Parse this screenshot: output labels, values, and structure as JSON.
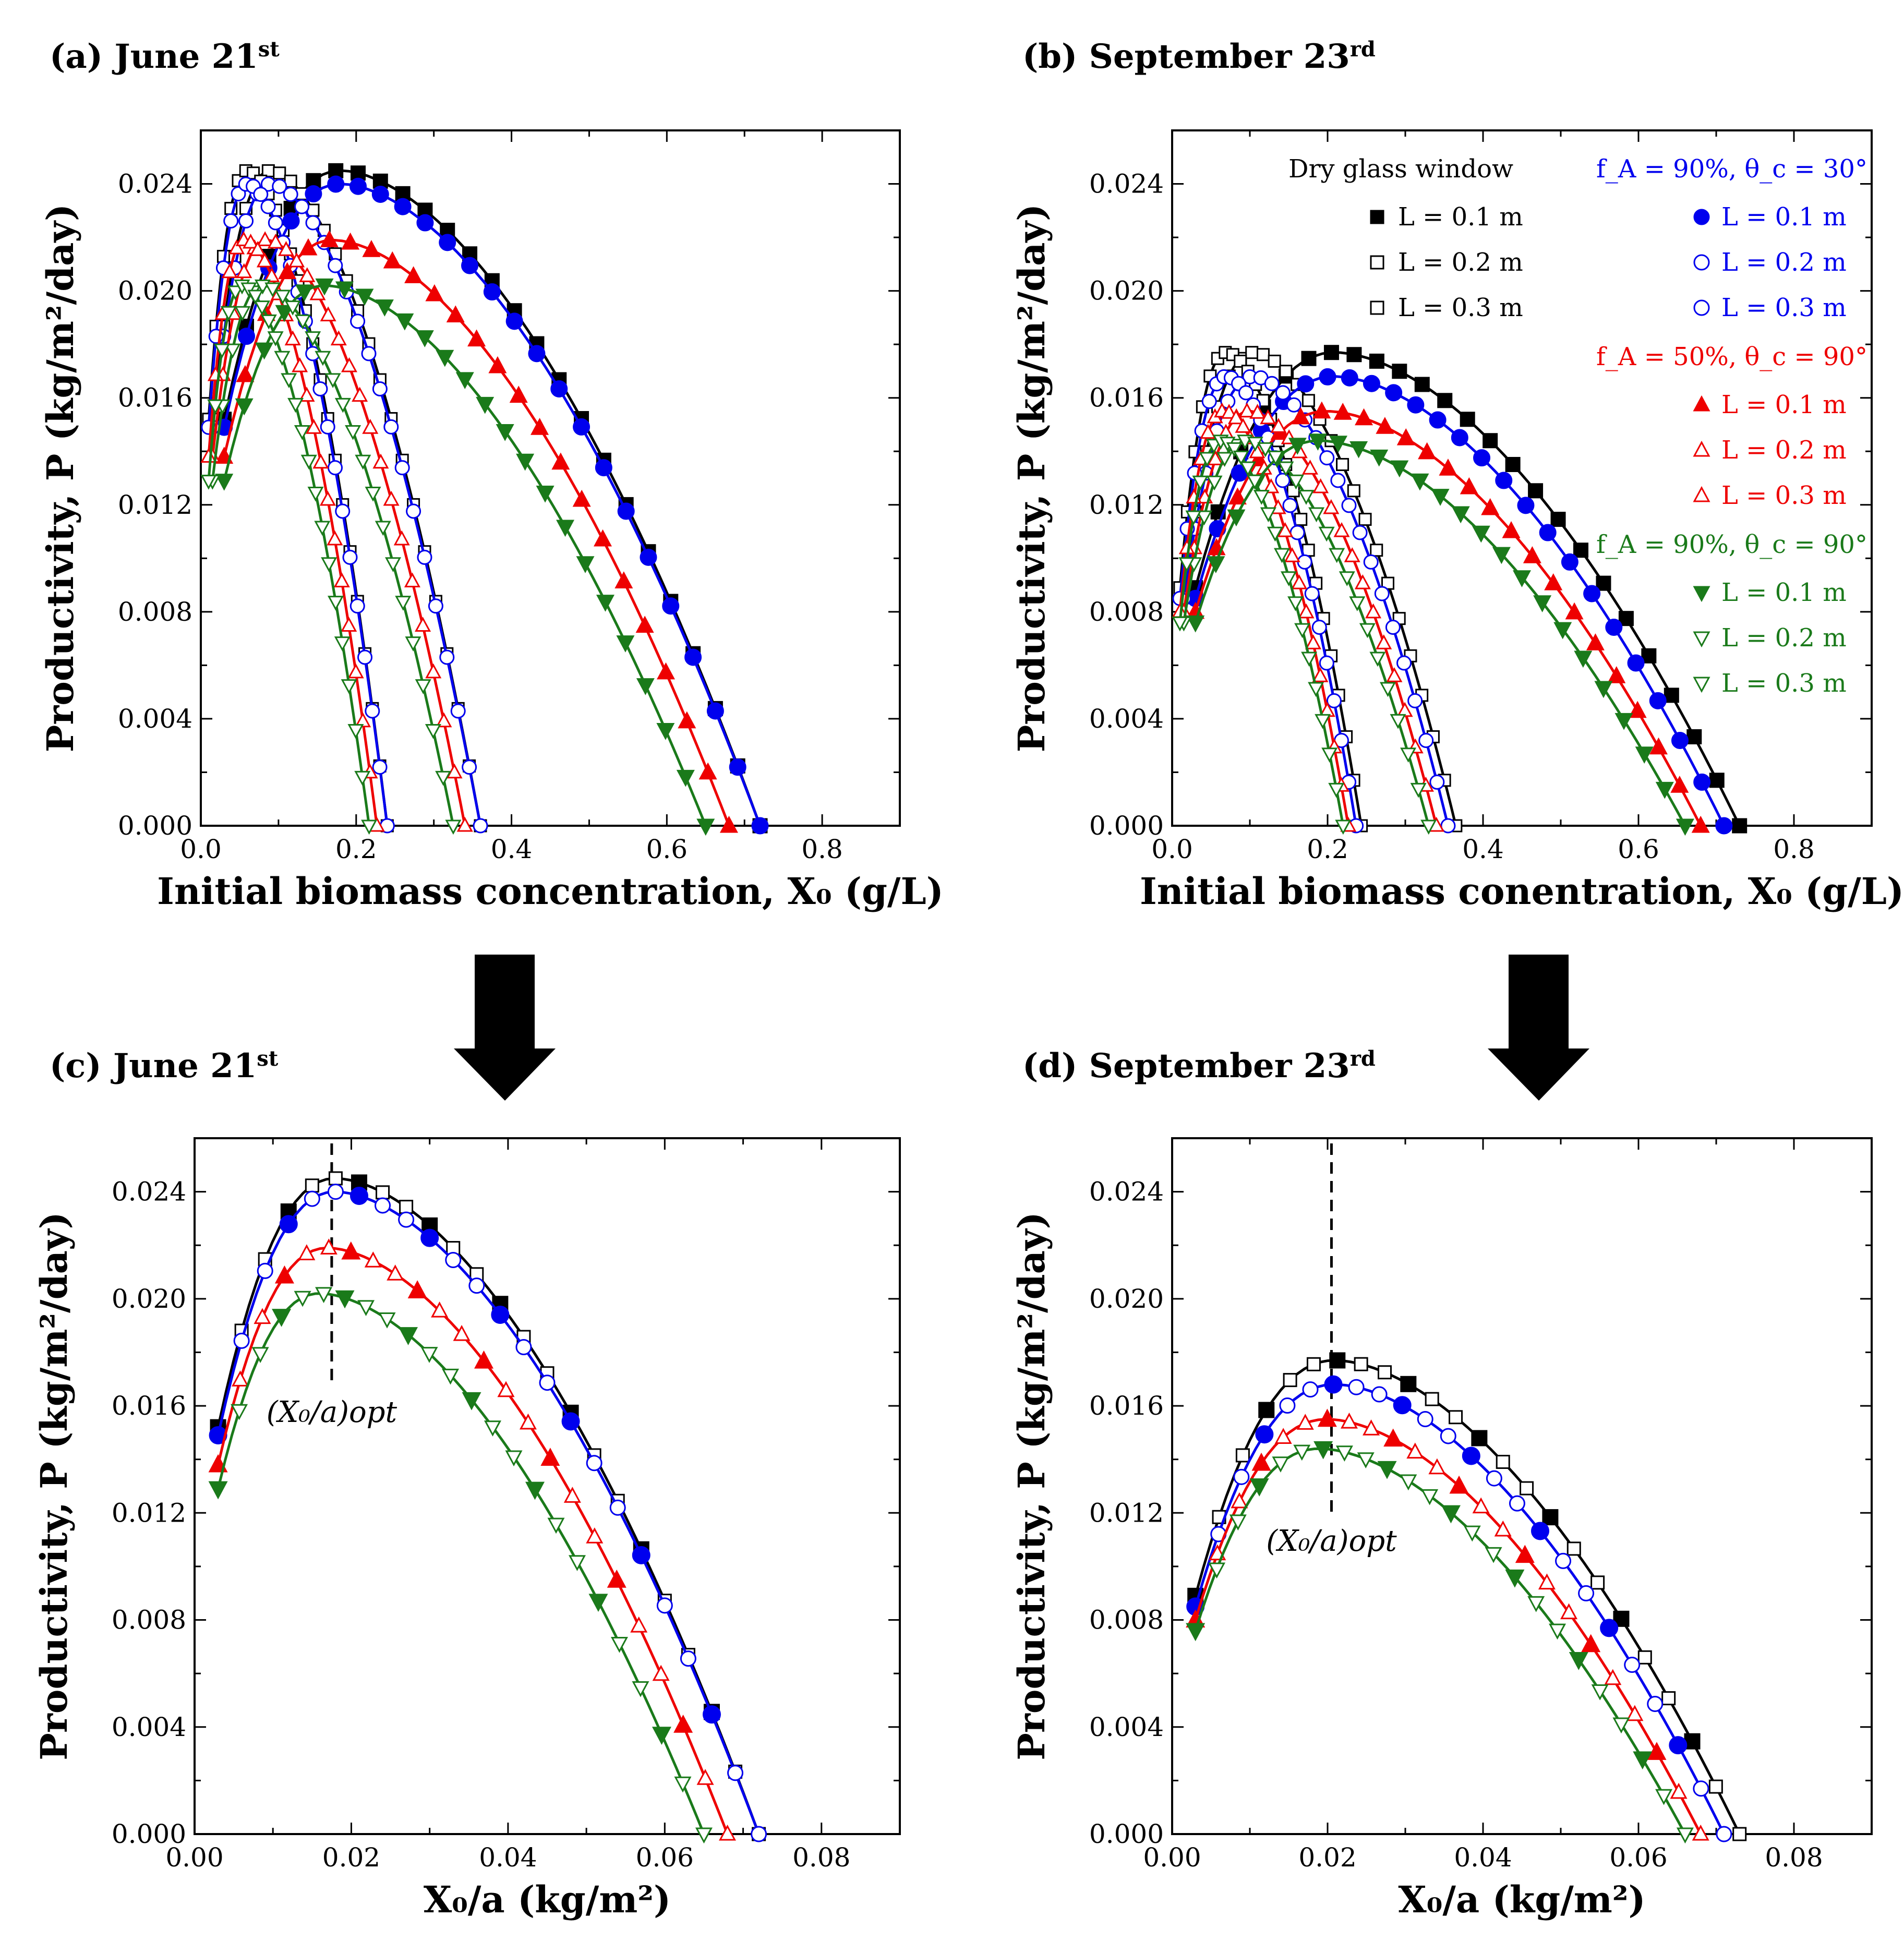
{
  "colors": {
    "dry": "#000000",
    "fa90_30": "#0000ee",
    "fa50_90": "#ee0000",
    "fa90_90": "#1a7a1a"
  },
  "panels": [
    {
      "title": "(a) June 21",
      "title_sup": "st",
      "ylabel": "Productivity, P (kg/m²/day)",
      "xlabel": "Initial biomass concentration, X₀ (g/L)",
      "x_ticks": [
        "0.0",
        "0.2",
        "0.4",
        "0.6",
        "0.8"
      ],
      "y_ticks": [
        "0.000",
        "0.004",
        "0.008",
        "0.012",
        "0.016",
        "0.020",
        "0.024"
      ]
    },
    {
      "title": "(b) September 23",
      "title_sup": "rd",
      "ylabel": "Productivity, P (kg/m²/day)",
      "xlabel": "Initial biomass conentration, X₀ (g/L)",
      "x_ticks": [
        "0.0",
        "0.2",
        "0.4",
        "0.6",
        "0.8"
      ],
      "y_ticks": [
        "0.000",
        "0.004",
        "0.008",
        "0.012",
        "0.016",
        "0.020",
        "0.024"
      ]
    },
    {
      "title": "(c) June 21",
      "title_sup": "st",
      "ylabel": "Productivity, P (kg/m²/day)",
      "xlabel": "X₀/a (kg/m²)",
      "x_ticks": [
        "0.00",
        "0.02",
        "0.04",
        "0.06",
        "0.08"
      ],
      "y_ticks": [
        "0.000",
        "0.004",
        "0.008",
        "0.012",
        "0.016",
        "0.020",
        "0.024"
      ],
      "annotation": "(X₀/a)opt"
    },
    {
      "title": "(d) September 23",
      "title_sup": "rd",
      "ylabel": "Productivity, P (kg/m²/day)",
      "xlabel": "X₀/a (kg/m²)",
      "x_ticks": [
        "0.00",
        "0.02",
        "0.04",
        "0.06",
        "0.08"
      ],
      "y_ticks": [
        "0.000",
        "0.004",
        "0.008",
        "0.012",
        "0.016",
        "0.020",
        "0.024"
      ],
      "annotation": "(X₀/a)opt"
    }
  ],
  "legend": {
    "dry_header": "Dry glass window",
    "fa90_30_header": "f_A = 90%, θ_c = 30°",
    "fa50_90_header": "f_A = 50%, θ_c = 90°",
    "fa90_90_header": "f_A = 90%, θ_c = 90°",
    "entries": [
      "L = 0.1 m",
      "L = 0.2 m",
      "L = 0.3 m"
    ]
  },
  "chart_data": [
    {
      "type": "line",
      "title": "(a) June 21st",
      "xlabel": "Initial biomass concentration, X0 (g/L)",
      "ylabel": "Productivity, P (kg/m2/day)",
      "xlim": [
        0,
        0.9
      ],
      "ylim": [
        0,
        0.026
      ],
      "series": [
        {
          "name": "Dry glass window, L = 0.1 m",
          "group": "dry",
          "L": 0.1,
          "Pmax": 0.0245,
          "x0": 0.03,
          "y0": 0.0152
        },
        {
          "name": "Dry glass window, L = 0.2 m",
          "group": "dry",
          "L": 0.2,
          "Pmax": 0.0245,
          "x0": 0.015,
          "y0": 0.0152
        },
        {
          "name": "Dry glass window, L = 0.3 m",
          "group": "dry",
          "L": 0.3,
          "Pmax": 0.0245,
          "x0": 0.01,
          "y0": 0.0152
        },
        {
          "name": "fA = 90%, θc = 30°, L = 0.1 m",
          "group": "fa90_30",
          "L": 0.1,
          "Pmax": 0.024,
          "x0": 0.03,
          "y0": 0.0149
        },
        {
          "name": "fA = 90%, θc = 30°, L = 0.2 m",
          "group": "fa90_30",
          "L": 0.2,
          "Pmax": 0.024,
          "x0": 0.015,
          "y0": 0.0149
        },
        {
          "name": "fA = 90%, θc = 30°, L = 0.3 m",
          "group": "fa90_30",
          "L": 0.3,
          "Pmax": 0.024,
          "x0": 0.01,
          "y0": 0.0149
        },
        {
          "name": "fA = 50%, θc = 90°, L = 0.1 m",
          "group": "fa50_90",
          "L": 0.1,
          "Pmax": 0.0219,
          "x0": 0.03,
          "y0": 0.0138
        },
        {
          "name": "fA = 50%, θc = 90°, L = 0.2 m",
          "group": "fa50_90",
          "L": 0.2,
          "Pmax": 0.0219,
          "x0": 0.015,
          "y0": 0.0138
        },
        {
          "name": "fA = 50%, θc = 90°, L = 0.3 m",
          "group": "fa50_90",
          "L": 0.3,
          "Pmax": 0.0219,
          "x0": 0.01,
          "y0": 0.0138
        },
        {
          "name": "fA = 90%, θc = 90°, L = 0.1 m",
          "group": "fa90_90",
          "L": 0.1,
          "Pmax": 0.0202,
          "x0": 0.03,
          "y0": 0.0129
        },
        {
          "name": "fA = 90%, θc = 90°, L = 0.2 m",
          "group": "fa90_90",
          "L": 0.2,
          "Pmax": 0.0202,
          "x0": 0.015,
          "y0": 0.0129
        },
        {
          "name": "fA = 90%, θc = 90°, L = 0.3 m",
          "group": "fa90_90",
          "L": 0.3,
          "Pmax": 0.0202,
          "x0": 0.01,
          "y0": 0.0129
        }
      ],
      "x_opt_by_group_over_L": {
        "dry": 0.018,
        "fa90_30": 0.018,
        "fa50_90": 0.017,
        "fa90_90": 0.016
      },
      "x_end_by_group_over_L": {
        "dry": 0.072,
        "fa90_30": 0.072,
        "fa50_90": 0.068,
        "fa90_90": 0.065
      }
    },
    {
      "type": "line",
      "title": "(b) September 23rd",
      "xlabel": "Initial biomass conentration, X0 (g/L)",
      "ylabel": "Productivity, P (kg/m2/day)",
      "xlim": [
        0,
        0.9
      ],
      "ylim": [
        0,
        0.026
      ],
      "series": [
        {
          "name": "Dry glass window, L = 0.1 m",
          "group": "dry",
          "L": 0.1,
          "Pmax": 0.0177,
          "x0": 0.03,
          "y0": 0.0089
        },
        {
          "name": "Dry glass window, L = 0.2 m",
          "group": "dry",
          "L": 0.2,
          "Pmax": 0.0177,
          "x0": 0.015,
          "y0": 0.0089
        },
        {
          "name": "Dry glass window, L = 0.3 m",
          "group": "dry",
          "L": 0.3,
          "Pmax": 0.0177,
          "x0": 0.01,
          "y0": 0.0089
        },
        {
          "name": "fA = 90%, θc = 30°, L = 0.1 m",
          "group": "fa90_30",
          "L": 0.1,
          "Pmax": 0.0168,
          "x0": 0.03,
          "y0": 0.0085
        },
        {
          "name": "fA = 90%, θc = 30°, L = 0.2 m",
          "group": "fa90_30",
          "L": 0.2,
          "Pmax": 0.0168,
          "x0": 0.015,
          "y0": 0.0085
        },
        {
          "name": "fA = 90%, θc = 30°, L = 0.3 m",
          "group": "fa90_30",
          "L": 0.3,
          "Pmax": 0.0168,
          "x0": 0.01,
          "y0": 0.0085
        },
        {
          "name": "fA = 50%, θc = 90°, L = 0.1 m",
          "group": "fa50_90",
          "L": 0.1,
          "Pmax": 0.0155,
          "x0": 0.03,
          "y0": 0.008
        },
        {
          "name": "fA = 50%, θc = 90°, L = 0.2 m",
          "group": "fa50_90",
          "L": 0.2,
          "Pmax": 0.0155,
          "x0": 0.015,
          "y0": 0.008
        },
        {
          "name": "fA = 50%, θc = 90°, L = 0.3 m",
          "group": "fa50_90",
          "L": 0.3,
          "Pmax": 0.0155,
          "x0": 0.01,
          "y0": 0.008
        },
        {
          "name": "fA = 90%, θc = 90°, L = 0.1 m",
          "group": "fa90_90",
          "L": 0.1,
          "Pmax": 0.0144,
          "x0": 0.03,
          "y0": 0.0076
        },
        {
          "name": "fA = 90%, θc = 90°, L = 0.2 m",
          "group": "fa90_90",
          "L": 0.2,
          "Pmax": 0.0144,
          "x0": 0.015,
          "y0": 0.0076
        },
        {
          "name": "fA = 90%, θc = 90°, L = 0.3 m",
          "group": "fa90_90",
          "L": 0.3,
          "Pmax": 0.0144,
          "x0": 0.01,
          "y0": 0.0076
        }
      ],
      "x_opt_by_group_over_L": {
        "dry": 0.021,
        "fa90_30": 0.021,
        "fa50_90": 0.02,
        "fa90_90": 0.019
      },
      "x_end_by_group_over_L": {
        "dry": 0.073,
        "fa90_30": 0.071,
        "fa50_90": 0.068,
        "fa90_90": 0.066
      }
    },
    {
      "type": "line",
      "title": "(c) June 21st",
      "xlabel": "X0/a (kg/m2)",
      "ylabel": "Productivity, P (kg/m2/day)",
      "xlim": [
        0,
        0.09
      ],
      "ylim": [
        0,
        0.026
      ],
      "x_opt": 0.0175,
      "annotation": "(X0/a)opt",
      "series": [
        {
          "name": "Dry glass window",
          "group": "dry",
          "x_start": 0.003,
          "y_start": 0.0152,
          "x_opt": 0.018,
          "Pmax": 0.0245,
          "x_end": 0.072
        },
        {
          "name": "fA = 90%, θc = 30°",
          "group": "fa90_30",
          "x_start": 0.003,
          "y_start": 0.0149,
          "x_opt": 0.018,
          "Pmax": 0.024,
          "x_end": 0.072
        },
        {
          "name": "fA = 50%, θc = 90°",
          "group": "fa50_90",
          "x_start": 0.003,
          "y_start": 0.0138,
          "x_opt": 0.017,
          "Pmax": 0.0219,
          "x_end": 0.068
        },
        {
          "name": "fA = 90%, θc = 90°",
          "group": "fa90_90",
          "x_start": 0.003,
          "y_start": 0.0129,
          "x_opt": 0.016,
          "Pmax": 0.0202,
          "x_end": 0.065
        }
      ]
    },
    {
      "type": "line",
      "title": "(d) September 23rd",
      "xlabel": "X0/a (kg/m2)",
      "ylabel": "Productivity, P (kg/m2/day)",
      "xlim": [
        0,
        0.09
      ],
      "ylim": [
        0,
        0.026
      ],
      "x_opt": 0.0205,
      "annotation": "(X0/a)opt",
      "series": [
        {
          "name": "Dry glass window",
          "group": "dry",
          "x_start": 0.003,
          "y_start": 0.0089,
          "x_opt": 0.021,
          "Pmax": 0.0177,
          "x_end": 0.073
        },
        {
          "name": "fA = 90%, θc = 30°",
          "group": "fa90_30",
          "x_start": 0.003,
          "y_start": 0.0085,
          "x_opt": 0.021,
          "Pmax": 0.0168,
          "x_end": 0.071
        },
        {
          "name": "fA = 50%, θc = 90°",
          "group": "fa50_90",
          "x_start": 0.003,
          "y_start": 0.008,
          "x_opt": 0.02,
          "Pmax": 0.0155,
          "x_end": 0.068
        },
        {
          "name": "fA = 90%, θc = 90°",
          "group": "fa90_90",
          "x_start": 0.003,
          "y_start": 0.0076,
          "x_opt": 0.019,
          "Pmax": 0.0144,
          "x_end": 0.066
        }
      ]
    }
  ]
}
